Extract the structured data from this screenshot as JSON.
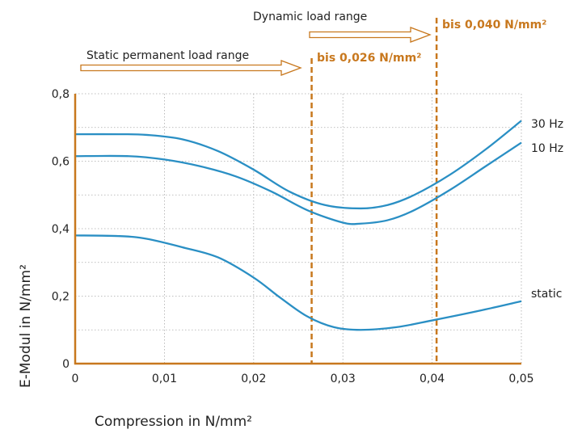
{
  "chart_data": {
    "type": "line",
    "xlabel": "Compression in N/mm²",
    "ylabel": "E-Modul in N/mm²",
    "xlim": [
      0,
      0.05
    ],
    "ylim": [
      0,
      0.8
    ],
    "x_ticks": [
      0,
      0.01,
      0.02,
      0.03,
      0.04,
      0.05
    ],
    "x_tick_labels": [
      "0",
      "0,01",
      "0,02",
      "0,03",
      "0,04",
      "0,05"
    ],
    "y_ticks": [
      0,
      0.2,
      0.4,
      0.6,
      0.8
    ],
    "y_tick_labels": [
      "0",
      "0,2",
      "0,4",
      "0,6",
      "0,8"
    ],
    "grid": true,
    "series": [
      {
        "name": "30 Hz",
        "color": "#2a8fc4",
        "x": [
          0,
          0.005,
          0.008,
          0.012,
          0.016,
          0.02,
          0.024,
          0.028,
          0.032,
          0.035,
          0.038,
          0.042,
          0.046,
          0.05
        ],
        "y": [
          0.68,
          0.68,
          0.678,
          0.665,
          0.63,
          0.575,
          0.51,
          0.47,
          0.46,
          0.47,
          0.5,
          0.56,
          0.635,
          0.72
        ]
      },
      {
        "name": "10 Hz",
        "color": "#2a8fc4",
        "x": [
          0,
          0.006,
          0.01,
          0.014,
          0.018,
          0.022,
          0.026,
          0.03,
          0.032,
          0.035,
          0.038,
          0.042,
          0.046,
          0.05
        ],
        "y": [
          0.615,
          0.615,
          0.605,
          0.585,
          0.555,
          0.51,
          0.455,
          0.418,
          0.415,
          0.425,
          0.455,
          0.515,
          0.585,
          0.655
        ]
      },
      {
        "name": "static",
        "color": "#2a8fc4",
        "x": [
          0,
          0.005,
          0.008,
          0.012,
          0.016,
          0.02,
          0.023,
          0.026,
          0.029,
          0.032,
          0.036,
          0.04,
          0.045,
          0.05
        ],
        "y": [
          0.38,
          0.378,
          0.37,
          0.345,
          0.315,
          0.255,
          0.195,
          0.14,
          0.108,
          0.1,
          0.108,
          0.128,
          0.155,
          0.185
        ]
      }
    ],
    "annotations": {
      "static_range_label": "Static permanent load range",
      "dynamic_range_label": "Dynamic load range",
      "limits": [
        {
          "x": 0.0265,
          "label": "bis 0,026 N/mm²"
        },
        {
          "x": 0.0405,
          "label": "bis 0,040 N/mm²"
        }
      ]
    }
  }
}
